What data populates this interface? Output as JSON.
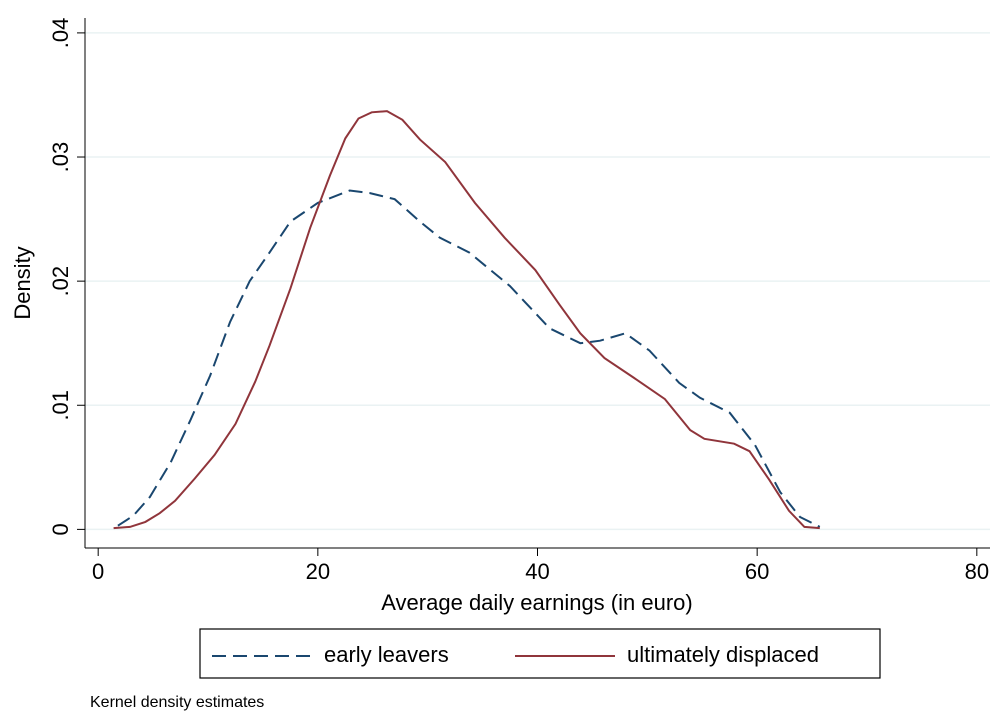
{
  "chart_data": {
    "type": "line",
    "x_label": "Average daily earnings (in euro)",
    "y_label": "Density",
    "note": "Kernel density estimates",
    "xlim": [
      -1.2,
      81.2
    ],
    "ylim": [
      -0.0015,
      0.0412
    ],
    "xticks": [
      0,
      20,
      40,
      60,
      80
    ],
    "yticks": [
      0,
      {
        "value": 0.01,
        "label": ".01"
      },
      {
        "value": 0.02,
        "label": ".02"
      },
      {
        "value": 0.03,
        "label": ".03"
      },
      {
        "value": 0.04,
        "label": ".04"
      }
    ],
    "grid": true,
    "legend": "bottom",
    "series": [
      {
        "name": "early leavers",
        "color": "#1a476f",
        "dash": true,
        "x": [
          1.8,
          3.2,
          4.7,
          6.6,
          8.4,
          10.2,
          12.0,
          13.8,
          15.6,
          17.5,
          20,
          22.9,
          24.7,
          27,
          29.3,
          31.1,
          33.8,
          37.5,
          41.1,
          43.9,
          45.7,
          48,
          50.2,
          52.9,
          54.8,
          57.5,
          59.8,
          62.1,
          63.9,
          65.7
        ],
        "values": [
          0.0003,
          0.0011,
          0.0026,
          0.0054,
          0.0088,
          0.0124,
          0.0167,
          0.02,
          0.0223,
          0.0248,
          0.0263,
          0.0273,
          0.0271,
          0.0266,
          0.0248,
          0.0235,
          0.0223,
          0.0196,
          0.0162,
          0.015,
          0.0152,
          0.0158,
          0.0144,
          0.0118,
          0.0106,
          0.0094,
          0.0068,
          0.003,
          0.001,
          0.0002
        ]
      },
      {
        "name": "ultimately displaced",
        "color": "#90353b",
        "dash": false,
        "x": [
          1.4,
          2.9,
          4.3,
          5.6,
          7,
          8.8,
          10.6,
          12.5,
          14.3,
          15.6,
          17.5,
          19.3,
          21.1,
          22.5,
          23.7,
          24.9,
          26.3,
          27.7,
          29.3,
          31.6,
          34.3,
          37,
          39.8,
          42,
          43.9,
          46.1,
          48.8,
          51.6,
          53.9,
          55.2,
          57.9,
          59.3,
          61.1,
          62.9,
          64.3,
          65.7
        ],
        "values": [
          0.0001,
          0.0002,
          0.0006,
          0.0013,
          0.0023,
          0.0041,
          0.006,
          0.0085,
          0.0119,
          0.0148,
          0.0194,
          0.0243,
          0.0285,
          0.0315,
          0.0331,
          0.0336,
          0.0337,
          0.033,
          0.0314,
          0.0296,
          0.0263,
          0.0235,
          0.0209,
          0.0181,
          0.0158,
          0.0138,
          0.0122,
          0.0105,
          0.008,
          0.0073,
          0.0069,
          0.0063,
          0.004,
          0.0015,
          0.0002,
          0.0001
        ]
      }
    ]
  }
}
